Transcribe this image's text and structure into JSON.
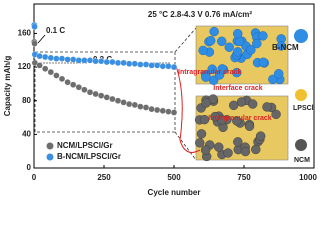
{
  "chart_data": {
    "type": "scatter",
    "title": "25 °C  2.8-4.3 V  0.76 mA/cm²",
    "x_label": "Cycle number",
    "y_label": "Capacity mAh/g",
    "x": [
      1,
      2,
      3,
      20,
      40,
      60,
      80,
      100,
      120,
      140,
      160,
      180,
      200,
      220,
      240,
      260,
      280,
      300,
      320,
      340,
      360,
      380,
      400,
      420,
      440,
      460,
      480,
      500
    ],
    "series": [
      {
        "name": "NCM/LPSCl/Gr",
        "color": "#6e6e6e",
        "values": [
          150,
          148,
          125,
          122,
          118,
          114,
          110,
          106,
          102,
          99,
          96,
          93,
          90,
          88,
          86,
          84,
          82,
          80,
          78,
          76,
          75,
          73,
          72,
          70,
          69,
          68,
          67,
          66
        ]
      },
      {
        "name": "B-NCM/LPSCl/Gr",
        "color": "#3b8fe0",
        "values": [
          170,
          168,
          135,
          133,
          132,
          131,
          130,
          130,
          129,
          129,
          128,
          128,
          128,
          127,
          127,
          126,
          126,
          125,
          125,
          124,
          124,
          123,
          123,
          122,
          122,
          121,
          121,
          120
        ]
      }
    ],
    "xlim": [
      0,
      1000
    ],
    "xticks": [
      0,
      250,
      500,
      750,
      1000
    ],
    "ylim": [
      0,
      195
    ],
    "yticks": [
      0,
      40,
      80,
      120,
      160
    ],
    "annotations": [
      "0.1 C",
      "0.2 C"
    ],
    "illustration": {
      "legend": [
        "B-NCM",
        "LPSCl",
        "NCM"
      ],
      "cracks": [
        "Intragranular crack",
        "Interface crack",
        "Intergranular crack"
      ]
    }
  }
}
